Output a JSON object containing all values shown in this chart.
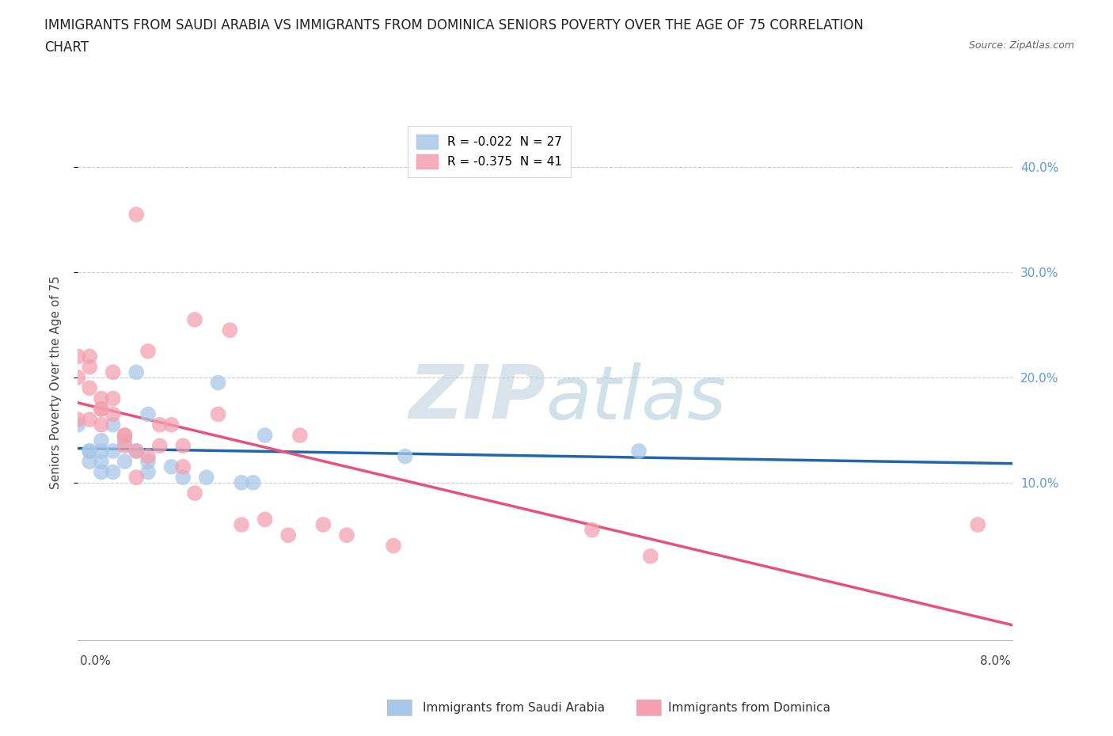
{
  "title_line1": "IMMIGRANTS FROM SAUDI ARABIA VS IMMIGRANTS FROM DOMINICA SENIORS POVERTY OVER THE AGE OF 75 CORRELATION",
  "title_line2": "CHART",
  "source": "Source: ZipAtlas.com",
  "ylabel": "Seniors Poverty Over the Age of 75",
  "legend_entries": [
    {
      "label": "R = -0.022  N = 27",
      "color": "#a8c8e8"
    },
    {
      "label": "R = -0.375  N = 41",
      "color": "#f4a0b0"
    }
  ],
  "yticks": [
    0.1,
    0.2,
    0.3,
    0.4
  ],
  "ytick_labels": [
    "10.0%",
    "20.0%",
    "30.0%",
    "40.0%"
  ],
  "xticks": [
    0.0,
    0.01,
    0.02,
    0.03,
    0.04,
    0.05,
    0.06,
    0.07,
    0.08
  ],
  "xtick_labels": [
    "",
    "",
    "",
    "",
    "",
    "",
    "",
    "",
    ""
  ],
  "xlim": [
    0.0,
    0.08
  ],
  "ylim": [
    -0.05,
    0.44
  ],
  "saudi_x": [
    0.0,
    0.001,
    0.001,
    0.001,
    0.002,
    0.002,
    0.002,
    0.002,
    0.003,
    0.003,
    0.003,
    0.004,
    0.004,
    0.005,
    0.005,
    0.006,
    0.006,
    0.006,
    0.008,
    0.009,
    0.011,
    0.012,
    0.014,
    0.015,
    0.016,
    0.028,
    0.048
  ],
  "saudi_y": [
    0.155,
    0.13,
    0.13,
    0.12,
    0.12,
    0.14,
    0.13,
    0.11,
    0.13,
    0.155,
    0.11,
    0.12,
    0.14,
    0.205,
    0.13,
    0.165,
    0.11,
    0.12,
    0.115,
    0.105,
    0.105,
    0.195,
    0.1,
    0.1,
    0.145,
    0.125,
    0.13
  ],
  "dominica_x": [
    0.0,
    0.0,
    0.0,
    0.001,
    0.001,
    0.001,
    0.001,
    0.002,
    0.002,
    0.002,
    0.002,
    0.003,
    0.003,
    0.003,
    0.004,
    0.004,
    0.004,
    0.005,
    0.005,
    0.005,
    0.006,
    0.006,
    0.007,
    0.007,
    0.008,
    0.009,
    0.009,
    0.01,
    0.01,
    0.012,
    0.013,
    0.014,
    0.016,
    0.018,
    0.019,
    0.021,
    0.023,
    0.027,
    0.044,
    0.049,
    0.077
  ],
  "dominica_y": [
    0.16,
    0.2,
    0.22,
    0.22,
    0.21,
    0.19,
    0.16,
    0.17,
    0.17,
    0.18,
    0.155,
    0.18,
    0.205,
    0.165,
    0.145,
    0.145,
    0.135,
    0.105,
    0.13,
    0.355,
    0.225,
    0.125,
    0.135,
    0.155,
    0.155,
    0.135,
    0.115,
    0.09,
    0.255,
    0.165,
    0.245,
    0.06,
    0.065,
    0.05,
    0.145,
    0.06,
    0.05,
    0.04,
    0.055,
    0.03,
    0.06
  ],
  "saudi_color": "#a8c8e8",
  "dominica_color": "#f4a0b0",
  "saudi_line_color": "#2166ac",
  "dominica_line_color": "#e8527a",
  "watermark_color": "#c8d8e8",
  "watermark_text": "ZIPatlas",
  "title_fontsize": 12,
  "axis_label_fontsize": 11,
  "tick_fontsize": 11,
  "legend_fontsize": 11,
  "bottom_legend_items": [
    {
      "label": "Immigrants from Saudi Arabia",
      "color": "#a8c8e8"
    },
    {
      "label": "Immigrants from Dominica",
      "color": "#f4a0b0"
    }
  ]
}
